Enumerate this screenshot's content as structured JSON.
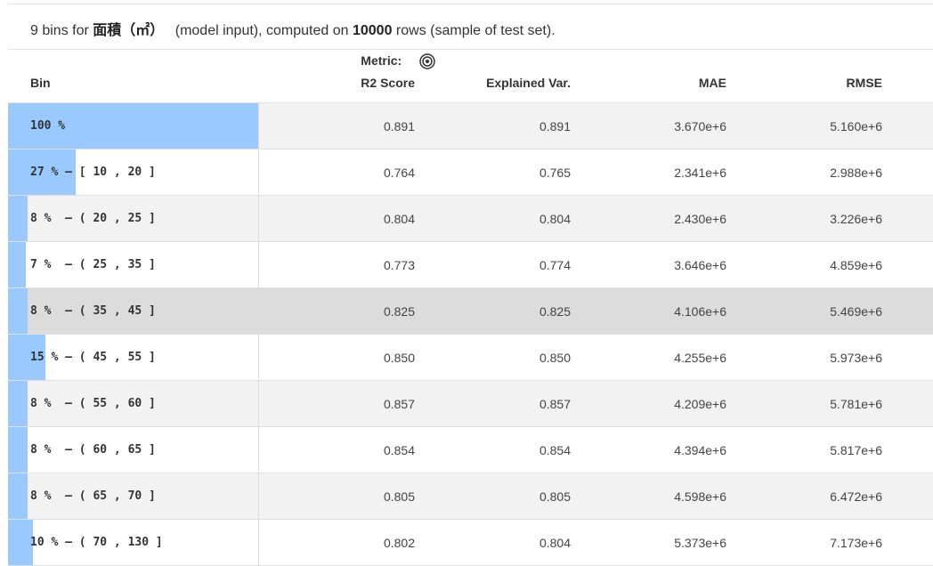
{
  "summary": {
    "prefix": "9 bins for",
    "feature": "面積（㎡）",
    "middle": "(model input), computed on",
    "rows": "10000",
    "suffix": "rows (sample of test set)."
  },
  "table": {
    "headers": {
      "bin": "Bin",
      "metric_line1": "Metric:",
      "metric_line2": "R2 Score",
      "explained_var": "Explained Var.",
      "mae": "MAE",
      "rmse": "RMSE"
    },
    "metric_icon": "target-icon",
    "rows": [
      {
        "pct_label": "100 %",
        "range": "",
        "fraction": 1.0,
        "r2": "0.891",
        "ev": "0.891",
        "mae": "3.670e+6",
        "rmse": "5.160e+6"
      },
      {
        "pct_label": "27 %",
        "range": " — [ 10 , 20 ]",
        "fraction": 0.27,
        "r2": "0.764",
        "ev": "0.765",
        "mae": "2.341e+6",
        "rmse": "2.988e+6"
      },
      {
        "pct_label": "8 %",
        "range": "  — ( 20 , 25 ]",
        "fraction": 0.08,
        "r2": "0.804",
        "ev": "0.804",
        "mae": "2.430e+6",
        "rmse": "3.226e+6"
      },
      {
        "pct_label": "7 %",
        "range": "  — ( 25 , 35 ]",
        "fraction": 0.07,
        "r2": "0.773",
        "ev": "0.774",
        "mae": "3.646e+6",
        "rmse": "4.859e+6"
      },
      {
        "pct_label": "8 %",
        "range": "  — ( 35 , 45 ]",
        "fraction": 0.08,
        "r2": "0.825",
        "ev": "0.825",
        "mae": "4.106e+6",
        "rmse": "5.469e+6"
      },
      {
        "pct_label": "15 %",
        "range": " — ( 45 , 55 ]",
        "fraction": 0.15,
        "r2": "0.850",
        "ev": "0.850",
        "mae": "4.255e+6",
        "rmse": "5.973e+6"
      },
      {
        "pct_label": "8 %",
        "range": "  — ( 55 , 60 ]",
        "fraction": 0.08,
        "r2": "0.857",
        "ev": "0.857",
        "mae": "4.209e+6",
        "rmse": "5.781e+6"
      },
      {
        "pct_label": "8 %",
        "range": "  — ( 60 , 65 ]",
        "fraction": 0.08,
        "r2": "0.854",
        "ev": "0.854",
        "mae": "4.394e+6",
        "rmse": "5.817e+6"
      },
      {
        "pct_label": "8 %",
        "range": "  — ( 65 , 70 ]",
        "fraction": 0.08,
        "r2": "0.805",
        "ev": "0.805",
        "mae": "4.598e+6",
        "rmse": "6.472e+6"
      },
      {
        "pct_label": "10 %",
        "range": " — ( 70 , 130 ]",
        "fraction": 0.1,
        "r2": "0.802",
        "ev": "0.804",
        "mae": "5.373e+6",
        "rmse": "7.173e+6"
      }
    ]
  },
  "colors": {
    "bar": "#99c9ff",
    "row_alt": "#f2f2f2",
    "row_hover": "#dcdcdc"
  }
}
